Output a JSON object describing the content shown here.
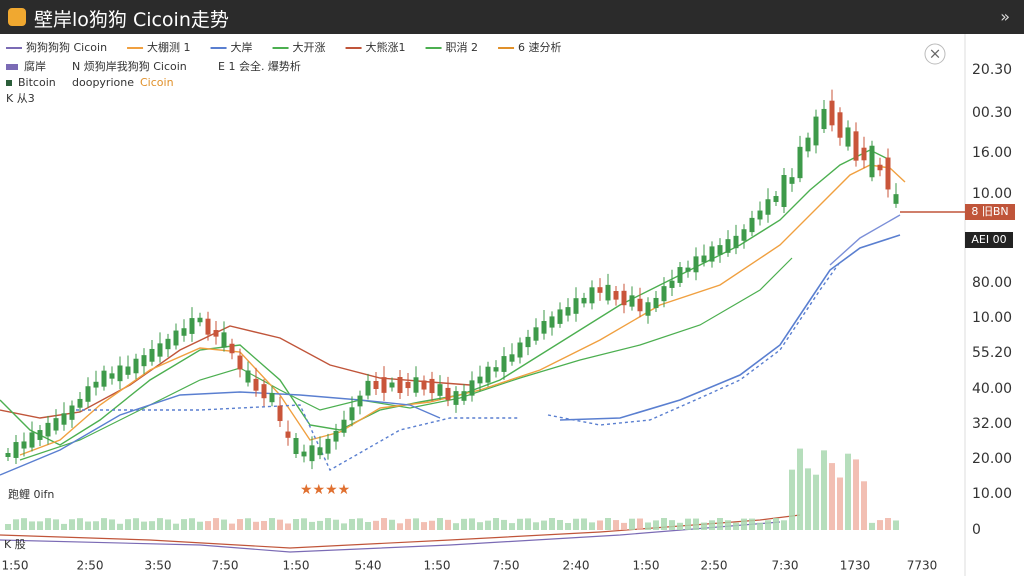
{
  "header": {
    "title": "壁岸lo狗狗 Cicoin走势",
    "more": "»"
  },
  "legend": [
    {
      "label": "狗狗狗狗 Cicoin",
      "color": "#7b6bb5"
    },
    {
      "label": "大棚测 1",
      "color": "#f0a040"
    },
    {
      "label": "大岸",
      "color": "#5a7fd0"
    },
    {
      "label": "大开涨",
      "color": "#4caf50"
    },
    {
      "label": "大熊涨1",
      "color": "#c0553a"
    },
    {
      "label": "职消 2",
      "color": "#4caf50"
    },
    {
      "label": "6 速分析",
      "color": "#e0902a"
    }
  ],
  "legend_row2": [
    "腐岸",
    "N 烦狗岸我狗狗 Cicoin",
    "E 1 会全. 爆势析"
  ],
  "legend_row3": [
    "Bitcoin",
    "doopyrione",
    "Cicoin"
  ],
  "legend_row4": "K 从3",
  "close_button": "×",
  "y_axis_labels": [
    "20.30",
    "00.30",
    "16.00",
    "10.00",
    "80.00",
    "10.00",
    "55.20",
    "40.00",
    "32.00",
    "20.00",
    "10.00",
    "0"
  ],
  "price_tag": "8 旧BN",
  "price_tag2": "AEI 00",
  "x_axis_labels": [
    "1:50",
    "2:50",
    "3:50",
    "7:50",
    "1:50",
    "5:40",
    "1:50",
    "7:50",
    "2:40",
    "1:50",
    "2:50",
    "7:30",
    "1730",
    "7730"
  ],
  "annotation": "跑鲤 0ifn",
  "volume_label": "K 股",
  "stars": "★★★★"
}
